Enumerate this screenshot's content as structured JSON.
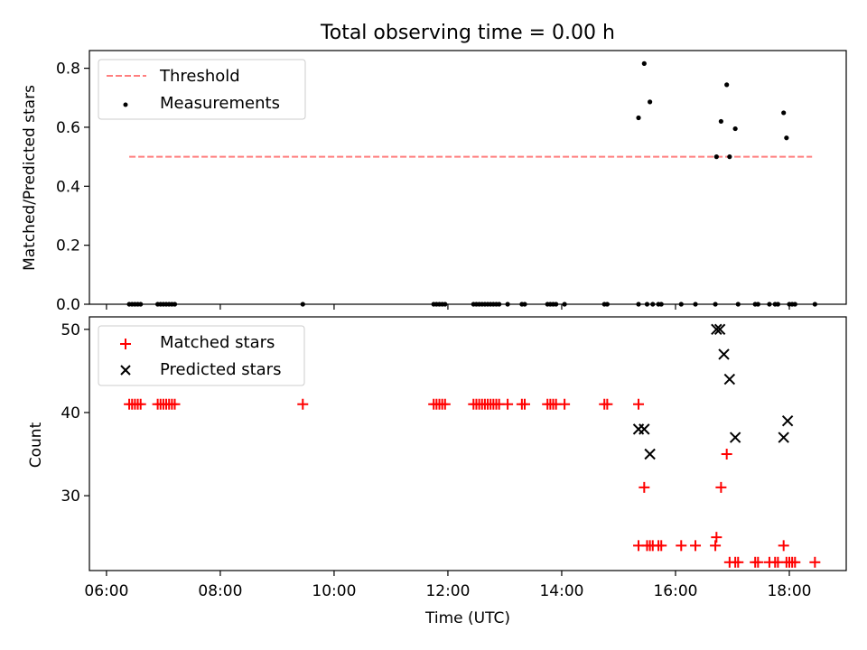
{
  "figure": {
    "title": "Total observing time = 0.00 h"
  },
  "chart_data": [
    {
      "type": "scatter",
      "ylabel": "Matched/Predicted stars",
      "ylim": [
        0,
        0.86
      ],
      "yticks": [
        0.0,
        0.2,
        0.4,
        0.6,
        0.8
      ],
      "ytick_labels": [
        "0.0",
        "0.2",
        "0.4",
        "0.6",
        "0.8"
      ],
      "xlim": [
        5.7,
        19.0
      ],
      "grid": false,
      "legend": "upper left",
      "threshold": {
        "name": "Threshold",
        "value": 0.5,
        "x_start": 6.4,
        "x_end": 18.4,
        "color": "#ff7f7f"
      },
      "series": [
        {
          "name": "Measurements",
          "color": "#000000",
          "marker": "dot",
          "x": [
            6.4,
            6.45,
            6.5,
            6.55,
            6.6,
            6.9,
            6.95,
            7.0,
            7.05,
            7.1,
            7.15,
            7.2,
            9.45,
            11.75,
            11.8,
            11.85,
            11.9,
            11.95,
            12.45,
            12.5,
            12.55,
            12.6,
            12.65,
            12.7,
            12.75,
            12.8,
            12.85,
            12.9,
            13.05,
            13.3,
            13.35,
            13.75,
            13.8,
            13.85,
            13.9,
            14.05,
            14.75,
            14.8,
            15.35,
            15.35,
            15.45,
            15.5,
            15.55,
            15.6,
            15.7,
            15.75,
            16.1,
            16.35,
            16.7,
            16.72,
            16.8,
            16.9,
            16.95,
            17.05,
            17.1,
            17.4,
            17.45,
            17.65,
            17.75,
            17.8,
            17.9,
            17.95,
            18.0,
            18.05,
            18.1,
            18.45
          ],
          "y": [
            0,
            0,
            0,
            0,
            0,
            0,
            0,
            0,
            0,
            0,
            0,
            0,
            0,
            0,
            0,
            0,
            0,
            0,
            0,
            0,
            0,
            0,
            0,
            0,
            0,
            0,
            0,
            0,
            0,
            0,
            0,
            0,
            0,
            0,
            0,
            0,
            0,
            0,
            0,
            0.632,
            0.816,
            0,
            0.686,
            0,
            0,
            0,
            0,
            0,
            0,
            0.5,
            0.62,
            0.744,
            0.5,
            0.595,
            0,
            0,
            0,
            0,
            0,
            0,
            0.649,
            0.564,
            0,
            0,
            0,
            0
          ]
        }
      ]
    },
    {
      "type": "scatter",
      "ylabel": "Count",
      "xlabel": "Time (UTC)",
      "ylim": [
        21,
        51.5
      ],
      "yticks": [
        30,
        40,
        50
      ],
      "ytick_labels": [
        "30",
        "40",
        "50"
      ],
      "xlim": [
        5.7,
        19.0
      ],
      "xticks": [
        6,
        8,
        10,
        12,
        14,
        16,
        18
      ],
      "xtick_labels": [
        "06:00",
        "08:00",
        "10:00",
        "12:00",
        "14:00",
        "16:00",
        "18:00"
      ],
      "grid": false,
      "legend": "upper left",
      "series": [
        {
          "name": "Matched stars",
          "color": "#ff0000",
          "marker": "plus",
          "x": [
            6.4,
            6.45,
            6.5,
            6.55,
            6.6,
            6.9,
            6.95,
            7.0,
            7.05,
            7.1,
            7.15,
            7.2,
            9.45,
            11.75,
            11.8,
            11.85,
            11.9,
            11.95,
            12.45,
            12.5,
            12.55,
            12.6,
            12.65,
            12.7,
            12.75,
            12.8,
            12.85,
            12.9,
            13.05,
            13.3,
            13.35,
            13.75,
            13.8,
            13.85,
            13.9,
            14.05,
            14.75,
            14.8,
            15.35,
            15.35,
            15.45,
            15.5,
            15.55,
            15.6,
            15.7,
            15.75,
            16.1,
            16.35,
            16.7,
            16.72,
            16.8,
            16.9,
            16.95,
            17.05,
            17.1,
            17.4,
            17.45,
            17.65,
            17.75,
            17.8,
            17.9,
            17.95,
            18.0,
            18.05,
            18.1,
            18.45
          ],
          "y": [
            41,
            41,
            41,
            41,
            41,
            41,
            41,
            41,
            41,
            41,
            41,
            41,
            41,
            41,
            41,
            41,
            41,
            41,
            41,
            41,
            41,
            41,
            41,
            41,
            41,
            41,
            41,
            41,
            41,
            41,
            41,
            41,
            41,
            41,
            41,
            41,
            41,
            41,
            41,
            24,
            31,
            24,
            24,
            24,
            24,
            24,
            24,
            24,
            24,
            25,
            31,
            35,
            22,
            22,
            22,
            22,
            22,
            22,
            22,
            22,
            24,
            22,
            22,
            22,
            22,
            22
          ]
        },
        {
          "name": "Predicted stars",
          "color": "#000000",
          "marker": "x",
          "x": [
            15.35,
            15.45,
            15.55,
            16.72,
            16.78,
            16.85,
            16.95,
            17.05,
            17.9,
            17.97
          ],
          "y": [
            38,
            38,
            35,
            50,
            50,
            47,
            44,
            37,
            37,
            39
          ]
        }
      ]
    }
  ]
}
